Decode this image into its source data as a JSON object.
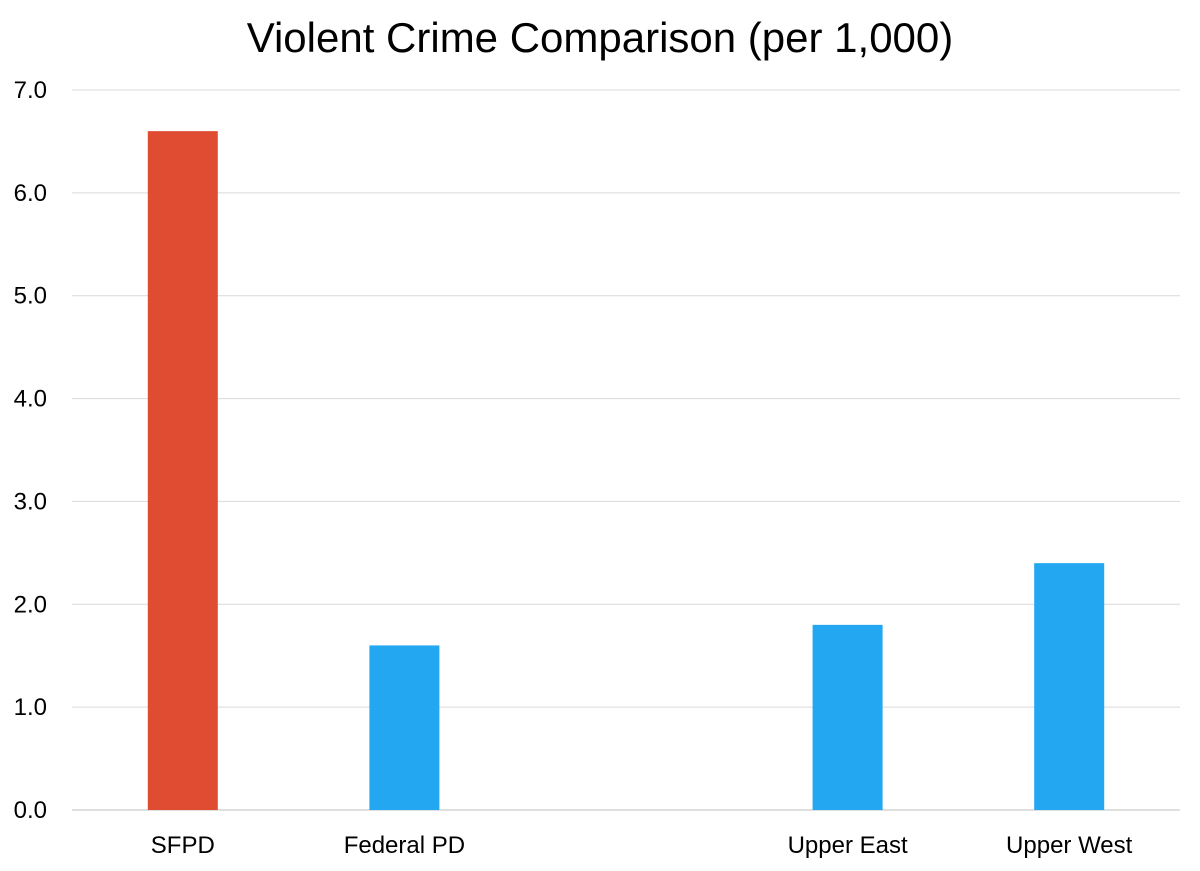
{
  "chart_data": {
    "type": "bar",
    "title": "Violent Crime Comparison (per 1,000)",
    "xlabel": "",
    "ylabel": "",
    "categories": [
      "SFPD",
      "Federal PD",
      "",
      "Upper East",
      "Upper West"
    ],
    "values": [
      6.6,
      1.6,
      null,
      1.8,
      2.4
    ],
    "bar_colors": [
      "#e04c32",
      "#22a7f0",
      "#22a7f0",
      "#22a7f0",
      "#22a7f0"
    ],
    "ylim": [
      0,
      7
    ],
    "yticks": [
      "0.0",
      "1.0",
      "2.0",
      "3.0",
      "4.0",
      "5.0",
      "6.0",
      "7.0"
    ],
    "grid": true,
    "legend": "none"
  }
}
